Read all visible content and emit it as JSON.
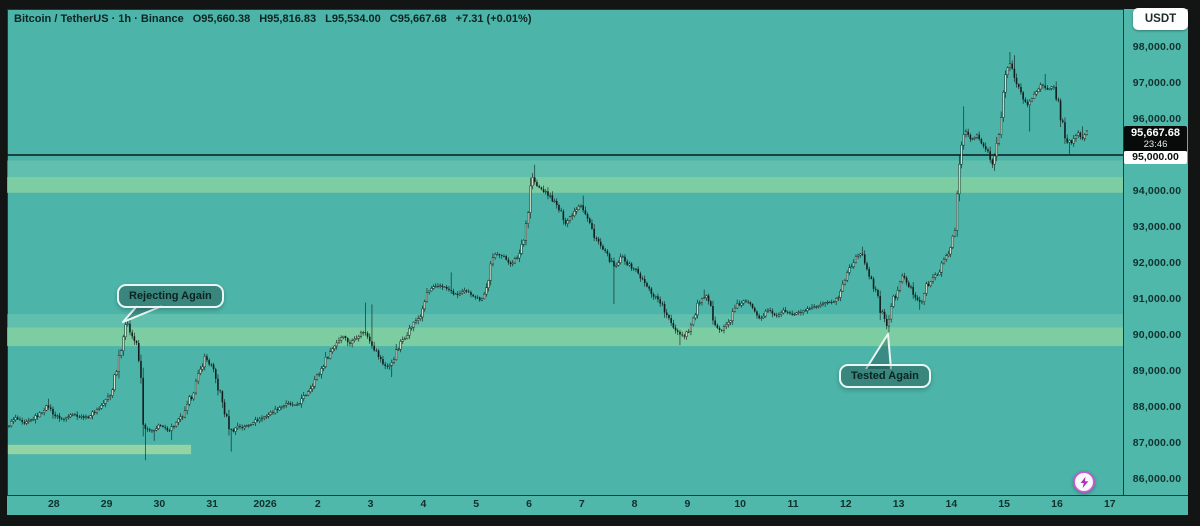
{
  "header": {
    "symbol_title": "Bitcoin / TetherUS · 1h · Binance",
    "open_label": "O95,660.38",
    "high_label": "H95,816.83",
    "low_label": "L95,534.00",
    "close_label": "C95,667.68",
    "change_label": "+7.31 (+0.01%)",
    "currency_button": "USDT"
  },
  "chart_data": {
    "type": "candlestick",
    "pair": "Bitcoin / TetherUS",
    "interval": "1h",
    "exchange": "Binance",
    "ohlc": {
      "open": 95660.38,
      "high": 95816.83,
      "low": 95534.0,
      "close": 95667.68,
      "change": 7.31,
      "change_pct": 0.01
    },
    "last_price_label": "95,667.68",
    "countdown": "23:46",
    "level": 95000,
    "level_label": "95,000.00",
    "y_axis": {
      "min": 86000,
      "max": 98000,
      "ticks": [
        {
          "label": "98,000.00",
          "price": 98000
        },
        {
          "label": "97,000.00",
          "price": 97000
        },
        {
          "label": "96,000.00",
          "price": 96000
        },
        {
          "label": "94,000.00",
          "price": 94000
        },
        {
          "label": "93,000.00",
          "price": 93000
        },
        {
          "label": "92,000.00",
          "price": 92000
        },
        {
          "label": "91,000.00",
          "price": 91000
        },
        {
          "label": "90,000.00",
          "price": 90000
        },
        {
          "label": "89,000.00",
          "price": 89000
        },
        {
          "label": "88,000.00",
          "price": 88000
        },
        {
          "label": "87,000.00",
          "price": 87000
        },
        {
          "label": "86,000.00",
          "price": 86000
        }
      ]
    },
    "x_axis": {
      "ticks": [
        {
          "label": "28",
          "d": -4
        },
        {
          "label": "29",
          "d": -3
        },
        {
          "label": "30",
          "d": -2
        },
        {
          "label": "31",
          "d": -1
        },
        {
          "label": "2026",
          "d": 0,
          "bold": true
        },
        {
          "label": "2",
          "d": 1
        },
        {
          "label": "3",
          "d": 2
        },
        {
          "label": "4",
          "d": 3
        },
        {
          "label": "5",
          "d": 4
        },
        {
          "label": "6",
          "d": 5
        },
        {
          "label": "7",
          "d": 6
        },
        {
          "label": "8",
          "d": 7
        },
        {
          "label": "9",
          "d": 8
        },
        {
          "label": "10",
          "d": 9
        },
        {
          "label": "11",
          "d": 10
        },
        {
          "label": "12",
          "d": 11
        },
        {
          "label": "13",
          "d": 12
        },
        {
          "label": "14",
          "d": 13
        },
        {
          "label": "15",
          "d": 14
        },
        {
          "label": "16",
          "d": 15
        },
        {
          "label": "17",
          "d": 16
        }
      ]
    },
    "zones": [
      {
        "name": "resistance-halo",
        "price_top": 94850,
        "price_bottom": 94390,
        "color": "#7acbb4",
        "opacity": 0.45,
        "full_width": true
      },
      {
        "name": "resistance-zone",
        "price_top": 94390,
        "price_bottom": 93950,
        "color": "#8ed6a0",
        "opacity": 0.75,
        "full_width": true
      },
      {
        "name": "support-halo",
        "price_top": 90580,
        "price_bottom": 90210,
        "color": "#7acbb4",
        "opacity": 0.45,
        "full_width": true
      },
      {
        "name": "support-zone",
        "price_top": 90210,
        "price_bottom": 89690,
        "color": "#8ed6a0",
        "opacity": 0.75,
        "full_width": true
      },
      {
        "name": "lower-support-band",
        "price_top": 86950,
        "price_bottom": 86690,
        "color": "#a5dba4",
        "opacity": 0.8,
        "full_width": false,
        "d_from": -4.87,
        "d_to": -1.4
      }
    ],
    "annotations": [
      {
        "text": "Rejecting Again",
        "anchor_day": -2.59,
        "anchor_price": 90480
      },
      {
        "text": "Tested Again",
        "anchor_day": 11.8,
        "anchor_price": 90080
      }
    ],
    "colors": {
      "background": "#4cb4a8",
      "axis_background": "#50b7ab",
      "candle_down": "#101d1c",
      "candle_up": "#cfe3cc",
      "wick": "#0e1b1a",
      "level_line": "#0a1b19",
      "text_dark": "#10312d"
    },
    "waypoints": [
      [
        -4.87,
        87450
      ],
      [
        -4.7,
        87700
      ],
      [
        -4.55,
        87520
      ],
      [
        -4.4,
        87650
      ],
      [
        -4.25,
        87800
      ],
      [
        -4.1,
        88050
      ],
      [
        -3.95,
        87750
      ],
      [
        -3.8,
        87650
      ],
      [
        -3.65,
        87820
      ],
      [
        -3.5,
        87740
      ],
      [
        -3.35,
        87700
      ],
      [
        -3.2,
        87880
      ],
      [
        -3.05,
        88080
      ],
      [
        -2.9,
        88350
      ],
      [
        -2.78,
        89200
      ],
      [
        -2.68,
        89900
      ],
      [
        -2.59,
        90380
      ],
      [
        -2.52,
        90050
      ],
      [
        -2.45,
        89850
      ],
      [
        -2.38,
        89400
      ],
      [
        -2.33,
        88700
      ],
      [
        -2.3,
        88100
      ],
      [
        -2.27,
        87200
      ],
      [
        -2.2,
        87350
      ],
      [
        -2.1,
        87300
      ],
      [
        -2.0,
        87500
      ],
      [
        -1.9,
        87420
      ],
      [
        -1.8,
        87350
      ],
      [
        -1.7,
        87500
      ],
      [
        -1.6,
        87650
      ],
      [
        -1.5,
        87800
      ],
      [
        -1.38,
        88300
      ],
      [
        -1.25,
        88800
      ],
      [
        -1.12,
        89380
      ],
      [
        -1.0,
        89150
      ],
      [
        -0.9,
        88700
      ],
      [
        -0.8,
        88200
      ],
      [
        -0.68,
        87500
      ],
      [
        -0.6,
        87300
      ],
      [
        -0.5,
        87480
      ],
      [
        -0.4,
        87420
      ],
      [
        -0.3,
        87500
      ],
      [
        -0.2,
        87600
      ],
      [
        -0.1,
        87650
      ],
      [
        0,
        87720
      ],
      [
        0.15,
        87850
      ],
      [
        0.3,
        88000
      ],
      [
        0.45,
        88100
      ],
      [
        0.6,
        88020
      ],
      [
        0.75,
        88250
      ],
      [
        0.9,
        88600
      ],
      [
        1.05,
        88950
      ],
      [
        1.2,
        89400
      ],
      [
        1.35,
        89750
      ],
      [
        1.5,
        90000
      ],
      [
        1.62,
        89750
      ],
      [
        1.75,
        89950
      ],
      [
        1.89,
        90100
      ],
      [
        2.0,
        89900
      ],
      [
        2.12,
        89550
      ],
      [
        2.25,
        89200
      ],
      [
        2.37,
        89100
      ],
      [
        2.5,
        89500
      ],
      [
        2.62,
        89850
      ],
      [
        2.75,
        90150
      ],
      [
        2.88,
        90400
      ],
      [
        3.0,
        90600
      ],
      [
        3.08,
        91150
      ],
      [
        3.2,
        91300
      ],
      [
        3.35,
        91380
      ],
      [
        3.5,
        91250
      ],
      [
        3.65,
        91100
      ],
      [
        3.8,
        91220
      ],
      [
        3.95,
        91120
      ],
      [
        4.1,
        90980
      ],
      [
        4.2,
        91200
      ],
      [
        4.3,
        91900
      ],
      [
        4.4,
        92300
      ],
      [
        4.55,
        92150
      ],
      [
        4.7,
        91950
      ],
      [
        4.85,
        92300
      ],
      [
        5.0,
        93400
      ],
      [
        5.07,
        94450
      ],
      [
        5.15,
        94150
      ],
      [
        5.3,
        94000
      ],
      [
        5.45,
        93800
      ],
      [
        5.6,
        93450
      ],
      [
        5.72,
        93100
      ],
      [
        5.85,
        93400
      ],
      [
        6.0,
        93650
      ],
      [
        6.12,
        93250
      ],
      [
        6.25,
        92800
      ],
      [
        6.4,
        92400
      ],
      [
        6.55,
        92100
      ],
      [
        6.65,
        91850
      ],
      [
        6.78,
        92200
      ],
      [
        6.9,
        91950
      ],
      [
        7.05,
        91800
      ],
      [
        7.2,
        91450
      ],
      [
        7.35,
        91150
      ],
      [
        7.5,
        90950
      ],
      [
        7.65,
        90450
      ],
      [
        7.8,
        90150
      ],
      [
        7.95,
        89950
      ],
      [
        8.1,
        90300
      ],
      [
        8.25,
        90950
      ],
      [
        8.4,
        91050
      ],
      [
        8.5,
        90500
      ],
      [
        8.65,
        90100
      ],
      [
        8.8,
        90350
      ],
      [
        8.95,
        90800
      ],
      [
        9.1,
        90950
      ],
      [
        9.25,
        90800
      ],
      [
        9.4,
        90450
      ],
      [
        9.55,
        90700
      ],
      [
        9.7,
        90520
      ],
      [
        9.85,
        90680
      ],
      [
        10.0,
        90560
      ],
      [
        10.2,
        90650
      ],
      [
        10.4,
        90750
      ],
      [
        10.6,
        90850
      ],
      [
        10.8,
        90950
      ],
      [
        10.9,
        91100
      ],
      [
        11.05,
        91750
      ],
      [
        11.2,
        92150
      ],
      [
        11.3,
        92300
      ],
      [
        11.42,
        91900
      ],
      [
        11.55,
        91350
      ],
      [
        11.68,
        90700
      ],
      [
        11.8,
        90250
      ],
      [
        11.9,
        90850
      ],
      [
        12.0,
        91300
      ],
      [
        12.1,
        91650
      ],
      [
        12.22,
        91350
      ],
      [
        12.35,
        91050
      ],
      [
        12.45,
        90900
      ],
      [
        12.55,
        91350
      ],
      [
        12.7,
        91600
      ],
      [
        12.85,
        91950
      ],
      [
        13.0,
        92400
      ],
      [
        13.08,
        93100
      ],
      [
        13.15,
        94200
      ],
      [
        13.22,
        95400
      ],
      [
        13.3,
        95650
      ],
      [
        13.4,
        95400
      ],
      [
        13.5,
        95550
      ],
      [
        13.6,
        95300
      ],
      [
        13.7,
        95100
      ],
      [
        13.78,
        94750
      ],
      [
        13.86,
        95000
      ],
      [
        13.95,
        96200
      ],
      [
        14.05,
        97200
      ],
      [
        14.12,
        97550
      ],
      [
        14.2,
        97250
      ],
      [
        14.3,
        96850
      ],
      [
        14.45,
        96350
      ],
      [
        14.6,
        96750
      ],
      [
        14.72,
        96950
      ],
      [
        14.85,
        96800
      ],
      [
        14.96,
        96900
      ],
      [
        15.05,
        96400
      ],
      [
        15.18,
        95450
      ],
      [
        15.3,
        95350
      ],
      [
        15.42,
        95600
      ],
      [
        15.5,
        95450
      ],
      [
        15.59,
        95667.68
      ]
    ],
    "spikes": [
      [
        -4.1,
        88230,
        "h"
      ],
      [
        -2.59,
        90490,
        "h"
      ],
      [
        -2.27,
        86520,
        "l"
      ],
      [
        -2.1,
        87060,
        "l"
      ],
      [
        -1.8,
        87080,
        "l"
      ],
      [
        -0.65,
        86760,
        "l"
      ],
      [
        1.89,
        90900,
        "h"
      ],
      [
        2.02,
        90850,
        "h"
      ],
      [
        2.37,
        88830,
        "l"
      ],
      [
        3.5,
        91740,
        "h"
      ],
      [
        5.07,
        94730,
        "h"
      ],
      [
        6.0,
        93870,
        "h"
      ],
      [
        6.57,
        90860,
        "l"
      ],
      [
        7.82,
        89720,
        "l"
      ],
      [
        8.3,
        91260,
        "h"
      ],
      [
        11.3,
        92450,
        "h"
      ],
      [
        11.8,
        90080,
        "l"
      ],
      [
        12.4,
        90700,
        "l"
      ],
      [
        13.2,
        96350,
        "h"
      ],
      [
        13.78,
        94560,
        "l"
      ],
      [
        14.1,
        97860,
        "h"
      ],
      [
        14.17,
        97770,
        "h"
      ],
      [
        14.45,
        95650,
        "l"
      ],
      [
        14.75,
        97250,
        "h"
      ],
      [
        15.2,
        95030,
        "l"
      ],
      [
        15.45,
        95800,
        "h"
      ]
    ]
  }
}
